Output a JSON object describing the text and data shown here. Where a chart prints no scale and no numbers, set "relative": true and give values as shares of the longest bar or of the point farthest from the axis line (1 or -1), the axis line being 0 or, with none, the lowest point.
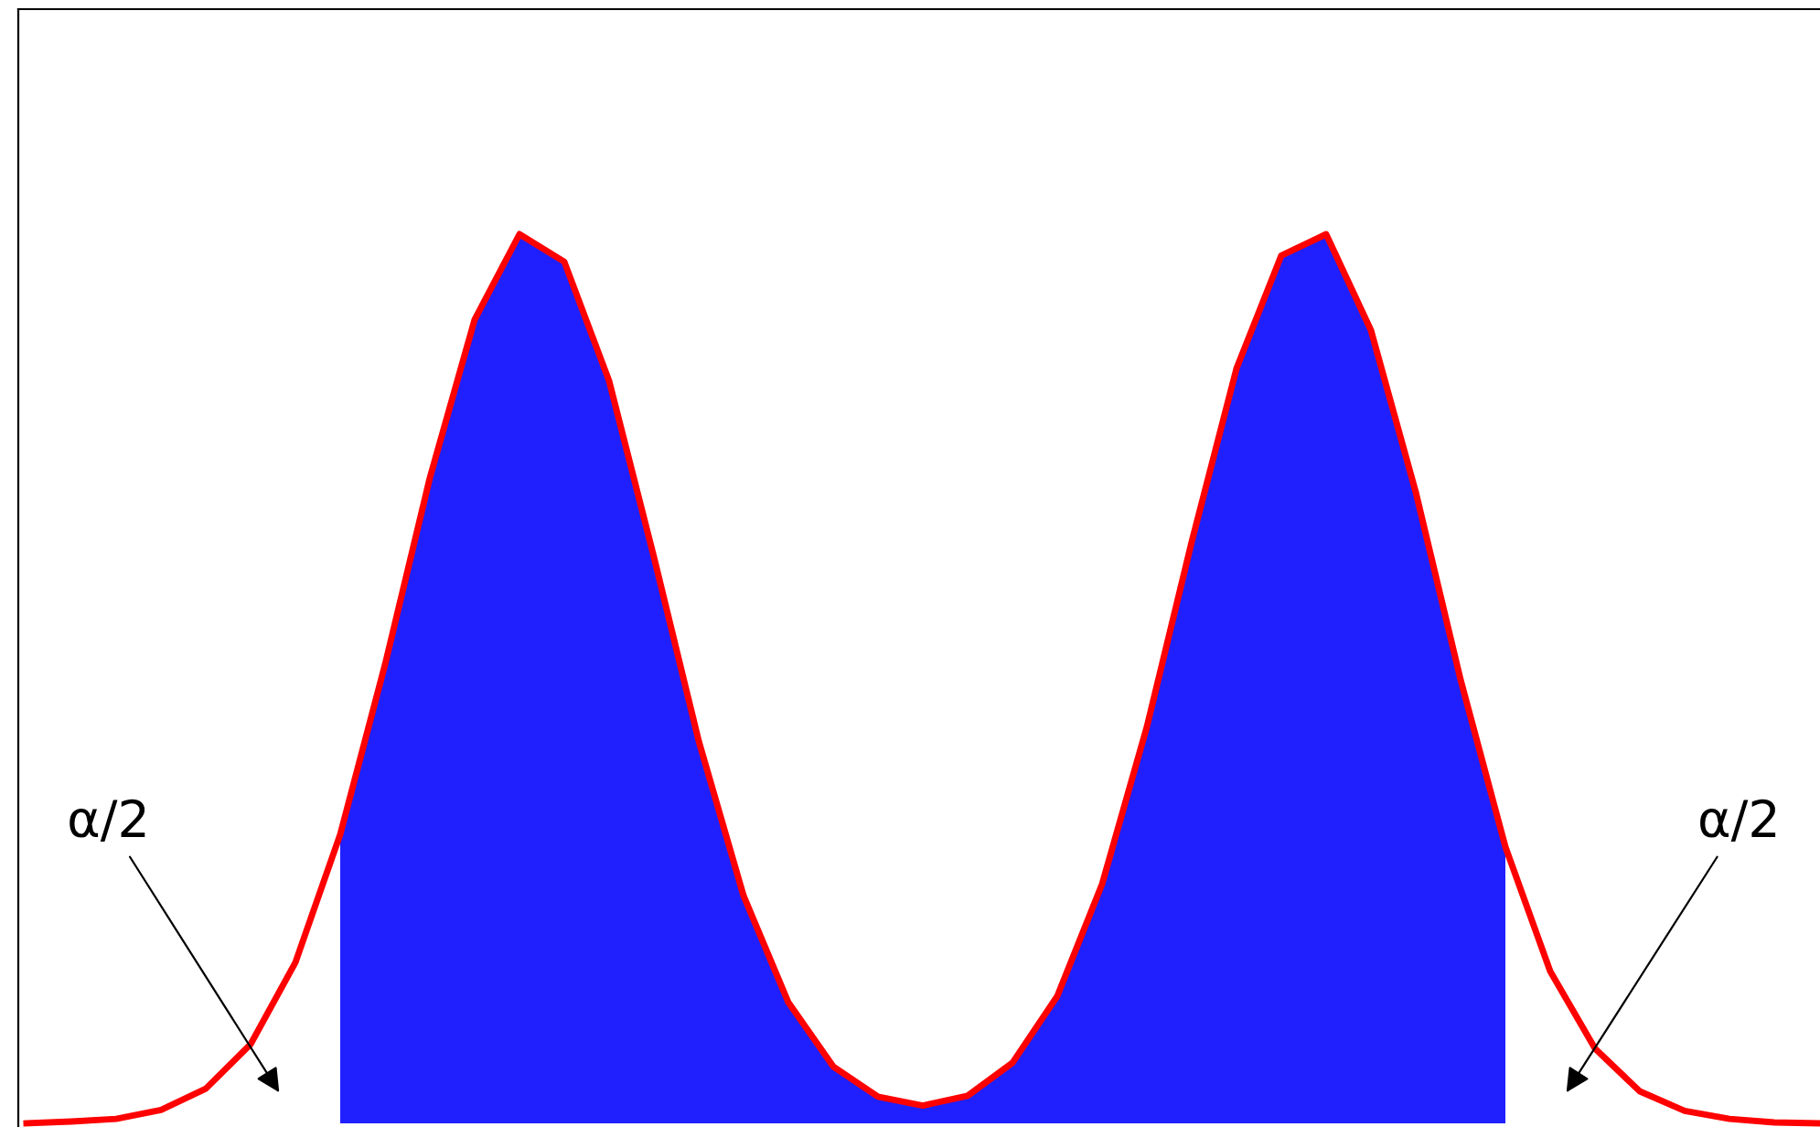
{
  "chart_data": {
    "type": "line",
    "relative": true,
    "categories": [
      null,
      null,
      null,
      null,
      null,
      null,
      null,
      null,
      null,
      null,
      null,
      null,
      null,
      null,
      null,
      null,
      null,
      null,
      null,
      null,
      null,
      null,
      null,
      null,
      null,
      null,
      null,
      null,
      null,
      null,
      null,
      null,
      null,
      null,
      null,
      null,
      null,
      null,
      null,
      null,
      null
    ],
    "series": [
      {
        "type": "area",
        "color": "#2020ff",
        "values": [
          null,
          null,
          null,
          null,
          null,
          null,
          null,
          0.325,
          0.516,
          0.726,
          0.904,
          1.0,
          0.969,
          0.835,
          0.637,
          0.43,
          0.256,
          0.136,
          0.064,
          0.03,
          0.02,
          0.031,
          0.068,
          0.143,
          0.269,
          0.446,
          0.654,
          0.849,
          0.976,
          1.0,
          0.892,
          0.71,
          0.499,
          0.311,
          null,
          null,
          null,
          null,
          null,
          null,
          null
        ]
      },
      {
        "color": "#ff0000",
        "values": [
          0.0,
          0.002,
          0.005,
          0.015,
          0.039,
          0.089,
          0.181,
          0.325,
          0.516,
          0.726,
          0.904,
          1.0,
          0.969,
          0.835,
          0.637,
          0.43,
          0.256,
          0.136,
          0.064,
          0.03,
          0.02,
          0.031,
          0.068,
          0.143,
          0.269,
          0.446,
          0.654,
          0.849,
          0.976,
          1.0,
          0.892,
          0.71,
          0.499,
          0.311,
          0.171,
          0.084,
          0.036,
          0.014,
          0.005,
          0.001,
          0.0
        ]
      }
    ],
    "annotations": [
      "α/2",
      "α/2"
    ]
  }
}
